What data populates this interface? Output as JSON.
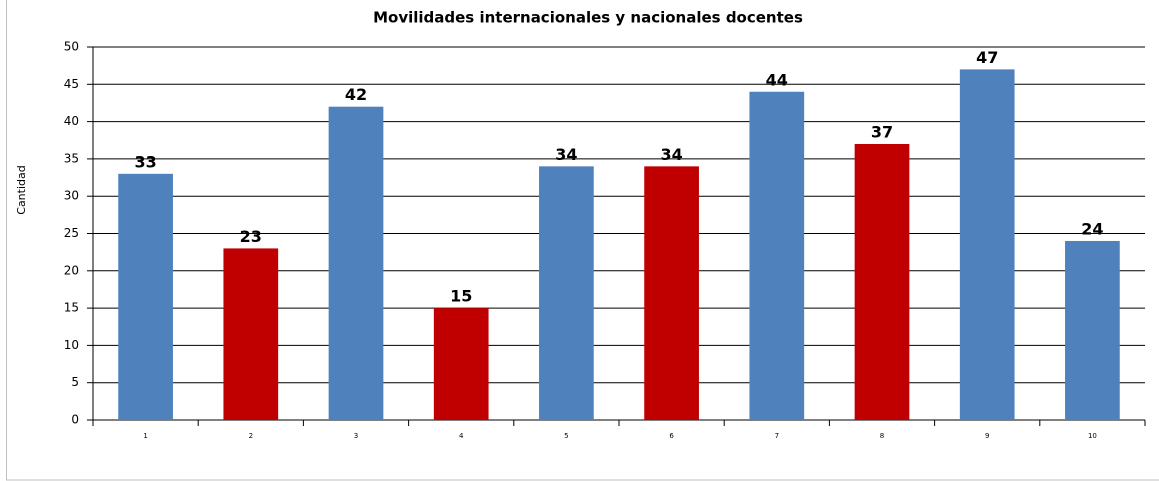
{
  "chart_data": {
    "type": "bar",
    "title": "Movilidades internacionales y nacionales docentes",
    "y_label": "Cantidad",
    "categories": [
      "1",
      "2",
      "3",
      "4",
      "5",
      "6",
      "7",
      "8",
      "9",
      "10"
    ],
    "values": [
      33,
      23,
      42,
      15,
      34,
      34,
      44,
      37,
      47,
      24
    ],
    "colors": [
      "#4f81bd",
      "#c00000",
      "#4f81bd",
      "#c00000",
      "#4f81bd",
      "#c00000",
      "#4f81bd",
      "#c00000",
      "#4f81bd",
      "#4f81bd"
    ],
    "ylim": [
      0,
      50
    ],
    "yticks": [
      0,
      5,
      10,
      15,
      20,
      25,
      30,
      35,
      40,
      45,
      50
    ],
    "grid": true,
    "data_labels": true
  }
}
